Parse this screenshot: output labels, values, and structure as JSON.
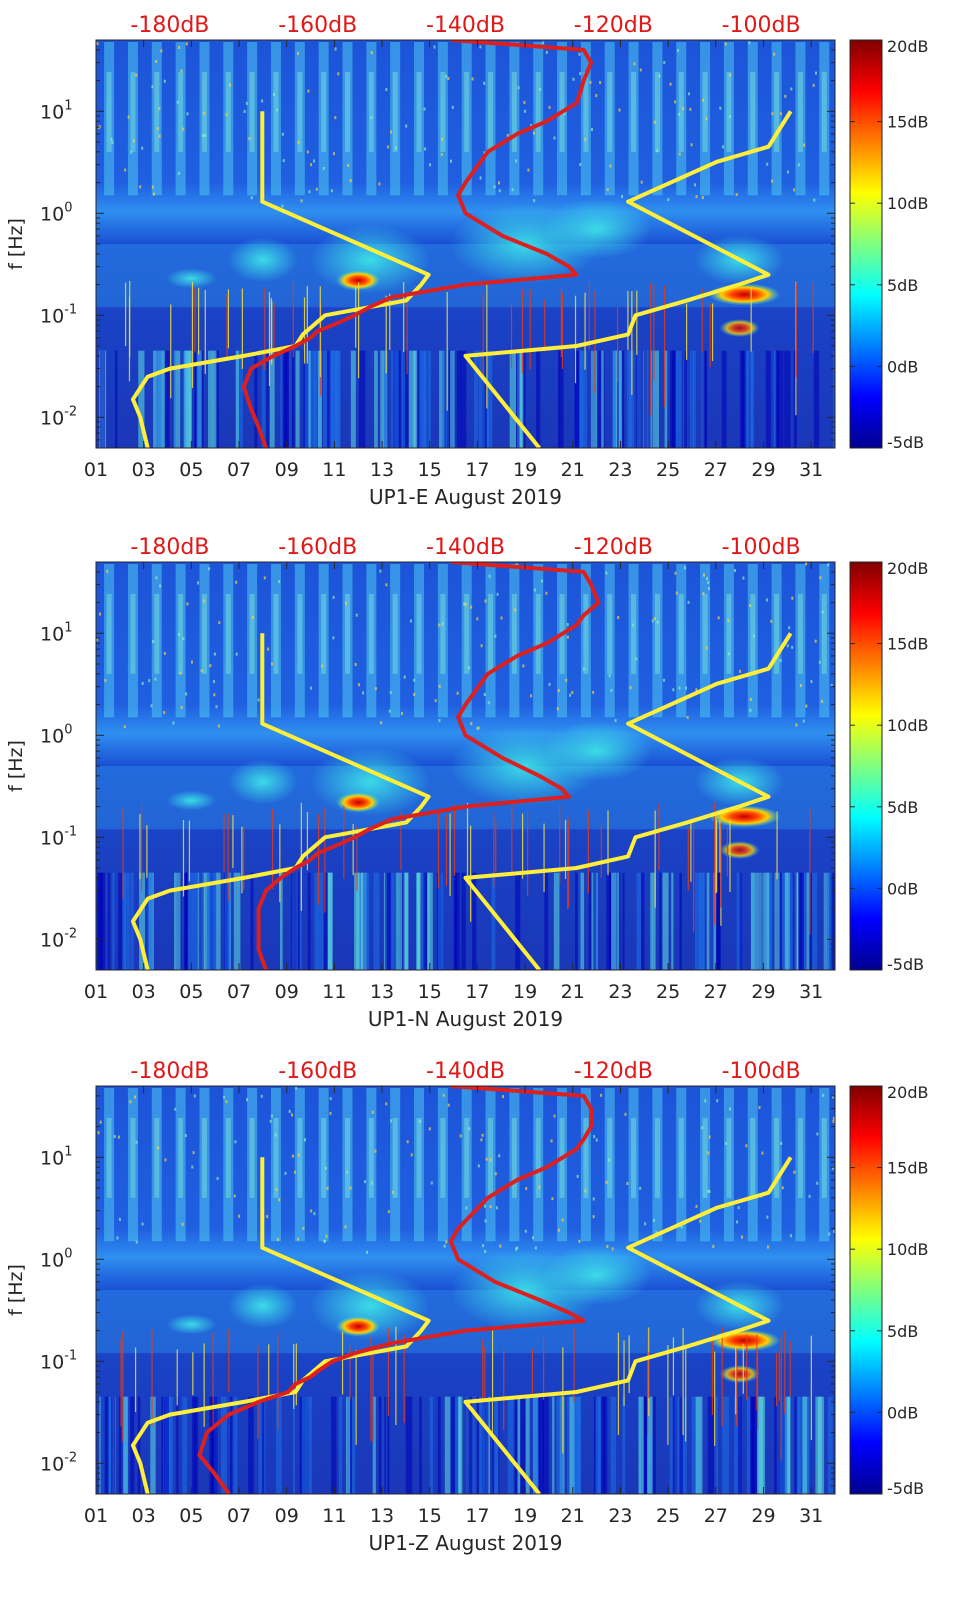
{
  "chart_data": [
    {
      "type": "heatmap",
      "xlabel": "UP1-E August 2019",
      "ylabel": "f [Hz]",
      "x_tick_labels": [
        "01",
        "03",
        "05",
        "07",
        "09",
        "11",
        "13",
        "15",
        "17",
        "19",
        "21",
        "23",
        "25",
        "27",
        "29",
        "31"
      ],
      "y_scale": "log",
      "ylim": [
        0.005,
        50
      ],
      "y_tick_labels": [
        {
          "base": "10",
          "exp": "1",
          "value": 10
        },
        {
          "base": "10",
          "exp": "0",
          "value": 1
        },
        {
          "base": "10",
          "exp": "-1",
          "value": 0.1
        },
        {
          "base": "10",
          "exp": "-2",
          "value": 0.01
        }
      ],
      "top_axis_labels": [
        "-180dB",
        "-160dB",
        "-140dB",
        "-120dB",
        "-100dB"
      ],
      "colorbar": {
        "labels": [
          "20dB",
          "15dB",
          "10dB",
          "5dB",
          "0dB",
          "-5dB"
        ],
        "range": [
          -5,
          20
        ]
      },
      "series": [
        {
          "color": "#ffef3a",
          "f": [
            10,
            1.3,
            0.25,
            0.2,
            0.14,
            0.1,
            0.065,
            0.05,
            0.04,
            0.03,
            0.025,
            0.015,
            0.01,
            0.005
          ],
          "db": [
            -167.5,
            -167.5,
            -145,
            -146,
            -148,
            -159,
            -162,
            -163,
            -170,
            -180,
            -183,
            -185,
            -184,
            -183
          ]
        },
        {
          "color": "#ffef3a",
          "f": [
            10,
            4.5,
            3.2,
            1.3,
            0.25,
            0.2,
            0.14,
            0.1,
            0.065,
            0.05,
            0.04,
            0.005
          ],
          "db": [
            -96,
            -99,
            -106,
            -118,
            -99,
            -103,
            -110,
            -117,
            -118,
            -125,
            -140,
            -130
          ]
        },
        {
          "color": "#dc1f1f",
          "f": [
            50,
            40,
            30,
            20,
            15,
            12,
            8,
            6,
            4,
            2,
            1.5,
            1,
            0.6,
            0.4,
            0.3,
            0.25,
            0.2,
            0.15,
            0.12,
            0.1,
            0.08,
            0.07,
            0.06,
            0.05,
            0.04,
            0.03,
            0.02,
            0.012,
            0.008,
            0.005
          ],
          "db": [
            -142,
            -124,
            -123,
            -124,
            -124.5,
            -125,
            -129,
            -133,
            -137,
            -140,
            -141,
            -140,
            -135,
            -129,
            -126,
            -125,
            -140,
            -150,
            -153,
            -155,
            -158,
            -160,
            -161,
            -163,
            -166,
            -169,
            -170,
            -169,
            -168,
            -167
          ]
        }
      ]
    },
    {
      "type": "heatmap",
      "xlabel": "UP1-N August 2019",
      "ylabel": "f [Hz]",
      "x_tick_labels": [
        "01",
        "03",
        "05",
        "07",
        "09",
        "11",
        "13",
        "15",
        "17",
        "19",
        "21",
        "23",
        "25",
        "27",
        "29",
        "31"
      ],
      "y_scale": "log",
      "ylim": [
        0.005,
        50
      ],
      "y_tick_labels": [
        {
          "base": "10",
          "exp": "1",
          "value": 10
        },
        {
          "base": "10",
          "exp": "0",
          "value": 1
        },
        {
          "base": "10",
          "exp": "-1",
          "value": 0.1
        },
        {
          "base": "10",
          "exp": "-2",
          "value": 0.01
        }
      ],
      "top_axis_labels": [
        "-180dB",
        "-160dB",
        "-140dB",
        "-120dB",
        "-100dB"
      ],
      "colorbar": {
        "labels": [
          "20dB",
          "15dB",
          "10dB",
          "5dB",
          "0dB",
          "-5dB"
        ],
        "range": [
          -5,
          20
        ]
      },
      "series": [
        {
          "color": "#ffef3a",
          "f": [
            10,
            1.3,
            0.25,
            0.2,
            0.14,
            0.1,
            0.065,
            0.05,
            0.04,
            0.03,
            0.025,
            0.015,
            0.01,
            0.005
          ],
          "db": [
            -167.5,
            -167.5,
            -145,
            -146,
            -148,
            -159,
            -162,
            -163,
            -170,
            -180,
            -183,
            -185,
            -184,
            -183
          ]
        },
        {
          "color": "#ffef3a",
          "f": [
            10,
            4.5,
            3.2,
            1.3,
            0.25,
            0.2,
            0.14,
            0.1,
            0.065,
            0.05,
            0.04,
            0.005
          ],
          "db": [
            -96,
            -99,
            -106,
            -118,
            -99,
            -103,
            -110,
            -117,
            -118,
            -125,
            -140,
            -130
          ]
        },
        {
          "color": "#dc1f1f",
          "f": [
            50,
            40,
            30,
            20,
            15,
            12,
            8,
            6,
            4,
            2,
            1.5,
            1,
            0.6,
            0.4,
            0.3,
            0.25,
            0.2,
            0.15,
            0.12,
            0.1,
            0.08,
            0.07,
            0.06,
            0.05,
            0.04,
            0.03,
            0.02,
            0.012,
            0.008,
            0.005
          ],
          "db": [
            -142,
            -124,
            -123,
            -122,
            -124,
            -125,
            -129,
            -133,
            -137,
            -140,
            -141,
            -140,
            -135,
            -130,
            -127,
            -126,
            -140,
            -150,
            -153,
            -155,
            -158,
            -160,
            -161,
            -163,
            -165,
            -167,
            -168,
            -168,
            -168,
            -167
          ]
        }
      ]
    },
    {
      "type": "heatmap",
      "xlabel": "UP1-Z August 2019",
      "ylabel": "f [Hz]",
      "x_tick_labels": [
        "01",
        "03",
        "05",
        "07",
        "09",
        "11",
        "13",
        "15",
        "17",
        "19",
        "21",
        "23",
        "25",
        "27",
        "29",
        "31"
      ],
      "y_scale": "log",
      "ylim": [
        0.005,
        50
      ],
      "y_tick_labels": [
        {
          "base": "10",
          "exp": "1",
          "value": 10
        },
        {
          "base": "10",
          "exp": "0",
          "value": 1
        },
        {
          "base": "10",
          "exp": "-1",
          "value": 0.1
        },
        {
          "base": "10",
          "exp": "-2",
          "value": 0.01
        }
      ],
      "top_axis_labels": [
        "-180dB",
        "-160dB",
        "-140dB",
        "-120dB",
        "-100dB"
      ],
      "colorbar": {
        "labels": [
          "20dB",
          "15dB",
          "10dB",
          "5dB",
          "0dB",
          "-5dB"
        ],
        "range": [
          -5,
          20
        ]
      },
      "series": [
        {
          "color": "#ffef3a",
          "f": [
            10,
            1.3,
            0.25,
            0.2,
            0.14,
            0.1,
            0.065,
            0.05,
            0.04,
            0.03,
            0.025,
            0.015,
            0.01,
            0.005
          ],
          "db": [
            -167.5,
            -167.5,
            -145,
            -146,
            -148,
            -159,
            -162,
            -163,
            -170,
            -180,
            -183,
            -185,
            -184,
            -183
          ]
        },
        {
          "color": "#ffef3a",
          "f": [
            10,
            4.5,
            3.2,
            1.3,
            0.25,
            0.2,
            0.14,
            0.1,
            0.065,
            0.05,
            0.04,
            0.005
          ],
          "db": [
            -96,
            -99,
            -106,
            -118,
            -99,
            -103,
            -110,
            -117,
            -118,
            -125,
            -140,
            -130
          ]
        },
        {
          "color": "#dc1f1f",
          "f": [
            50,
            40,
            30,
            20,
            15,
            12,
            8,
            6,
            4,
            2,
            1.5,
            1,
            0.6,
            0.4,
            0.3,
            0.25,
            0.2,
            0.15,
            0.12,
            0.1,
            0.08,
            0.07,
            0.06,
            0.05,
            0.04,
            0.03,
            0.02,
            0.012,
            0.008,
            0.005
          ],
          "db": [
            -142,
            -124,
            -123,
            -123,
            -124,
            -125,
            -129,
            -133,
            -137,
            -141,
            -142,
            -141,
            -136,
            -130,
            -126,
            -124,
            -140,
            -150,
            -155,
            -158,
            -160,
            -161,
            -163,
            -164,
            -168,
            -172,
            -175,
            -176,
            -174,
            -172
          ]
        }
      ]
    }
  ]
}
